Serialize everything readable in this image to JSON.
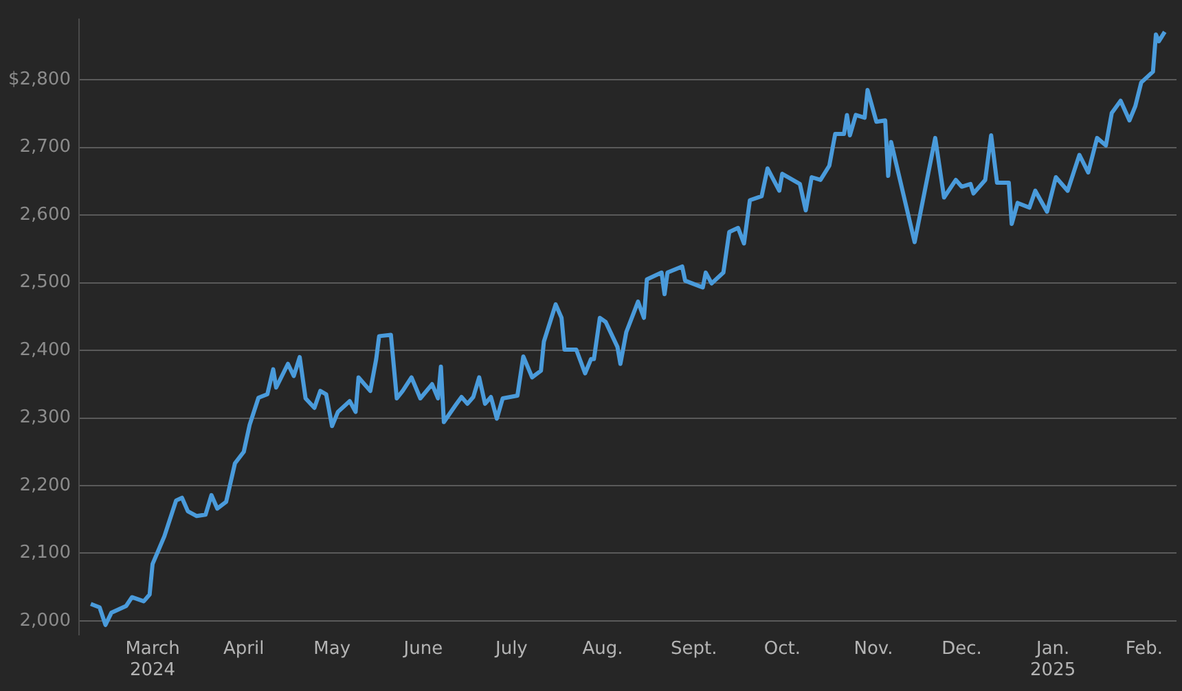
{
  "chart_data": {
    "type": "line",
    "grid": "y",
    "marker": "none",
    "legend": false,
    "xlim": [
      "2024-02-05",
      "2025-02-12"
    ],
    "ylim": [
      1980,
      2890
    ],
    "yticks": [
      {
        "value": 2000,
        "label": "2,000"
      },
      {
        "value": 2100,
        "label": "2,100"
      },
      {
        "value": 2200,
        "label": "2,200"
      },
      {
        "value": 2300,
        "label": "2,300"
      },
      {
        "value": 2400,
        "label": "2,400"
      },
      {
        "value": 2500,
        "label": "2,500"
      },
      {
        "value": 2600,
        "label": "2,600"
      },
      {
        "value": 2700,
        "label": "2,700"
      },
      {
        "value": 2800,
        "label": "$2,800"
      }
    ],
    "xticks": [
      {
        "value": "2024-03-01",
        "label": "March 2024"
      },
      {
        "value": "2024-04-01",
        "label": "April"
      },
      {
        "value": "2024-05-01",
        "label": "May"
      },
      {
        "value": "2024-06-01",
        "label": "June"
      },
      {
        "value": "2024-07-01",
        "label": "July"
      },
      {
        "value": "2024-08-01",
        "label": "Aug."
      },
      {
        "value": "2024-09-01",
        "label": "Sept."
      },
      {
        "value": "2024-10-01",
        "label": "Oct."
      },
      {
        "value": "2024-11-01",
        "label": "Nov."
      },
      {
        "value": "2024-12-01",
        "label": "Dec."
      },
      {
        "value": "2025-01-01",
        "label": "Jan. 2025"
      },
      {
        "value": "2025-02-01",
        "label": "Feb."
      }
    ],
    "series": [
      {
        "color": "#4a9bdb",
        "x": [
          "2024-02-09",
          "2024-02-12",
          "2024-02-14",
          "2024-02-16",
          "2024-02-21",
          "2024-02-23",
          "2024-02-27",
          "2024-02-29",
          "2024-03-01",
          "2024-03-05",
          "2024-03-09",
          "2024-03-11",
          "2024-03-13",
          "2024-03-16",
          "2024-03-19",
          "2024-03-21",
          "2024-03-23",
          "2024-03-26",
          "2024-03-29",
          "2024-04-01",
          "2024-04-03",
          "2024-04-06",
          "2024-04-09",
          "2024-04-11",
          "2024-04-12",
          "2024-04-16",
          "2024-04-18",
          "2024-04-20",
          "2024-04-22",
          "2024-04-25",
          "2024-04-27",
          "2024-04-29",
          "2024-05-01",
          "2024-05-03",
          "2024-05-07",
          "2024-05-09",
          "2024-05-10",
          "2024-05-14",
          "2024-05-16",
          "2024-05-17",
          "2024-05-21",
          "2024-05-23",
          "2024-05-25",
          "2024-05-28",
          "2024-05-31",
          "2024-06-04",
          "2024-06-06",
          "2024-06-07",
          "2024-06-08",
          "2024-06-12",
          "2024-06-14",
          "2024-06-16",
          "2024-06-18",
          "2024-06-20",
          "2024-06-22",
          "2024-06-24",
          "2024-06-26",
          "2024-06-28",
          "2024-07-03",
          "2024-07-05",
          "2024-07-08",
          "2024-07-11",
          "2024-07-12",
          "2024-07-16",
          "2024-07-18",
          "2024-07-19",
          "2024-07-23",
          "2024-07-26",
          "2024-07-28",
          "2024-07-29",
          "2024-07-31",
          "2024-08-02",
          "2024-08-06",
          "2024-08-07",
          "2024-08-09",
          "2024-08-13",
          "2024-08-15",
          "2024-08-16",
          "2024-08-21",
          "2024-08-22",
          "2024-08-23",
          "2024-08-28",
          "2024-08-29",
          "2024-09-04",
          "2024-09-05",
          "2024-09-07",
          "2024-09-11",
          "2024-09-13",
          "2024-09-16",
          "2024-09-18",
          "2024-09-20",
          "2024-09-24",
          "2024-09-26",
          "2024-09-30",
          "2024-10-01",
          "2024-10-07",
          "2024-10-09",
          "2024-10-11",
          "2024-10-14",
          "2024-10-17",
          "2024-10-19",
          "2024-10-22",
          "2024-10-23",
          "2024-10-24",
          "2024-10-26",
          "2024-10-29",
          "2024-10-30",
          "2024-11-02",
          "2024-11-05",
          "2024-11-06",
          "2024-11-07",
          "2024-11-15",
          "2024-11-22",
          "2024-11-25",
          "2024-11-29",
          "2024-12-01",
          "2024-12-04",
          "2024-12-05",
          "2024-12-09",
          "2024-12-11",
          "2024-12-13",
          "2024-12-17",
          "2024-12-18",
          "2024-12-20",
          "2024-12-24",
          "2024-12-26",
          "2024-12-30",
          "2025-01-02",
          "2025-01-06",
          "2025-01-10",
          "2025-01-13",
          "2025-01-16",
          "2025-01-19",
          "2025-01-21",
          "2025-01-24",
          "2025-01-27",
          "2025-01-29",
          "2025-01-31",
          "2025-02-04",
          "2025-02-05",
          "2025-02-06",
          "2025-02-08"
        ],
        "values": [
          2025,
          2020,
          1994,
          2012,
          2022,
          2035,
          2029,
          2039,
          2084,
          2125,
          2178,
          2182,
          2162,
          2155,
          2157,
          2186,
          2166,
          2176,
          2233,
          2250,
          2290,
          2330,
          2335,
          2372,
          2345,
          2380,
          2362,
          2390,
          2329,
          2315,
          2340,
          2335,
          2288,
          2309,
          2325,
          2309,
          2360,
          2340,
          2387,
          2421,
          2423,
          2329,
          2340,
          2360,
          2329,
          2350,
          2329,
          2376,
          2294,
          2319,
          2331,
          2321,
          2331,
          2360,
          2321,
          2331,
          2299,
          2329,
          2333,
          2391,
          2360,
          2370,
          2413,
          2468,
          2448,
          2401,
          2401,
          2366,
          2387,
          2387,
          2448,
          2442,
          2405,
          2380,
          2427,
          2472,
          2448,
          2505,
          2515,
          2483,
          2515,
          2524,
          2503,
          2493,
          2515,
          2499,
          2515,
          2575,
          2581,
          2558,
          2622,
          2628,
          2669,
          2636,
          2661,
          2646,
          2607,
          2656,
          2652,
          2673,
          2720,
          2720,
          2748,
          2718,
          2748,
          2744,
          2785,
          2738,
          2740,
          2658,
          2708,
          2560,
          2714,
          2626,
          2652,
          2642,
          2646,
          2632,
          2652,
          2718,
          2648,
          2648,
          2587,
          2618,
          2611,
          2636,
          2605,
          2656,
          2636,
          2689,
          2663,
          2714,
          2703,
          2751,
          2769,
          2740,
          2761,
          2796,
          2812,
          2867,
          2857,
          2871
        ]
      }
    ]
  }
}
